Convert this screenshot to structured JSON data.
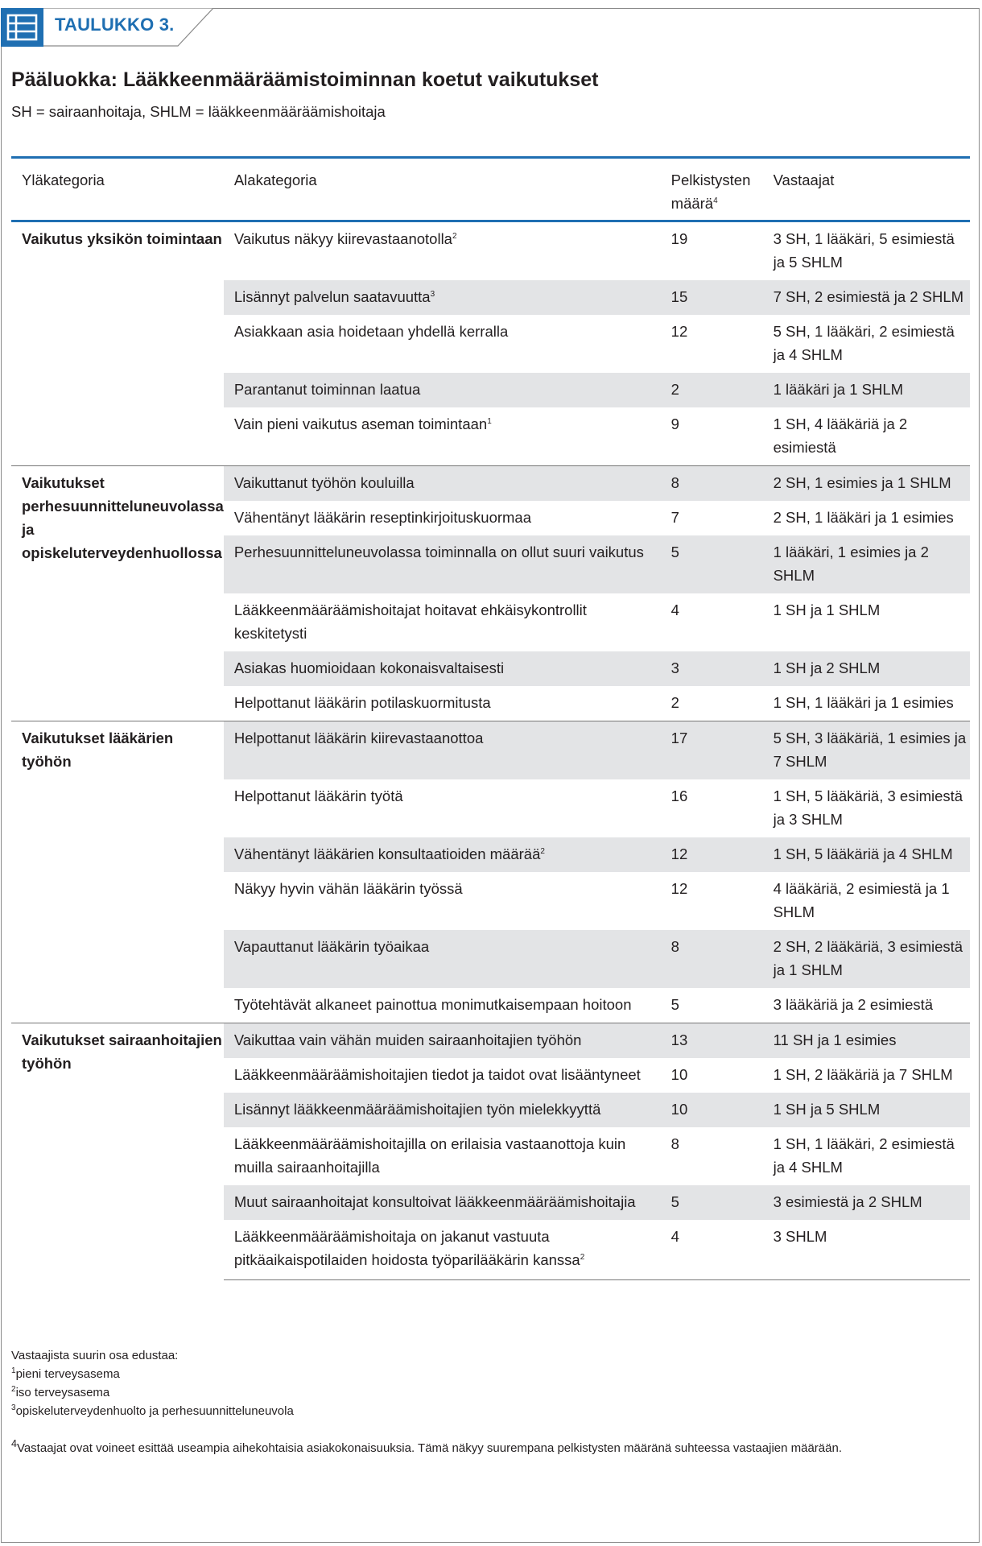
{
  "header": {
    "tag_label": "TAULUKKO 3.",
    "accent_color": "#1f6fb2",
    "icon": "table-icon"
  },
  "title": "Pääluokka: Lääkkeenmääräämistoiminnan koetut vaikutukset",
  "subtitle": "SH = sairaanhoitaja, SHLM = lääkkeenmääräämishoitaja",
  "table": {
    "columns": [
      "Yläkategoria",
      "Alakategoria",
      "Pelkistysten määrä",
      "Vastaajat"
    ],
    "groups": [
      {
        "category": "Vaikutus yksikön toimintaan",
        "rows": [
          {
            "sub": "Vaikutus näkyy kiirevastaanotolla",
            "sup": "2",
            "count": "19",
            "resp": "3 SH, 1 lääkäri, 5 esimiestä ja 5 SHLM"
          },
          {
            "sub": "Lisännyt palvelun saatavuutta",
            "sup": "3",
            "count": "15",
            "resp": "7 SH, 2 esimiestä ja 2 SHLM"
          },
          {
            "sub": "Asiakkaan asia hoidetaan yhdellä kerralla",
            "sup": "",
            "count": "12",
            "resp": "5 SH, 1 lääkäri, 2 esimiestä ja 4 SHLM"
          },
          {
            "sub": "Parantanut toiminnan laatua",
            "sup": "",
            "count": "2",
            "resp": "1 lääkäri ja 1 SHLM"
          },
          {
            "sub": "Vain pieni vaikutus aseman toimintaan",
            "sup": "1",
            "count": "9",
            "resp": "1 SH, 4 lääkäriä ja 2 esimiestä"
          }
        ]
      },
      {
        "category": "Vaikutukset perhesuunnitteluneuvolassa ja opiskeluterveydenhuollossa",
        "rows": [
          {
            "sub": "Vaikuttanut työhön kouluilla",
            "sup": "",
            "count": "8",
            "resp": "2 SH, 1 esimies ja 1 SHLM"
          },
          {
            "sub": "Vähentänyt lääkärin reseptinkirjoituskuormaa",
            "sup": "",
            "count": "7",
            "resp": "2 SH, 1 lääkäri ja 1 esimies"
          },
          {
            "sub": "Perhesuunnitteluneuvolassa toiminnalla on ollut suuri vaikutus",
            "sup": "",
            "count": "5",
            "resp": "1 lääkäri, 1 esimies ja 2 SHLM"
          },
          {
            "sub": "Lääkkeenmääräämishoitajat hoitavat ehkäisykontrollit keskitetysti",
            "sup": "",
            "count": "4",
            "resp": "1 SH ja 1 SHLM"
          },
          {
            "sub": "Asiakas huomioidaan kokonaisvaltaisesti",
            "sup": "",
            "count": "3",
            "resp": "1 SH ja 2 SHLM"
          },
          {
            "sub": "Helpottanut lääkärin potilaskuormitusta",
            "sup": "",
            "count": "2",
            "resp": "1 SH, 1 lääkäri ja 1 esimies"
          }
        ]
      },
      {
        "category": "Vaikutukset lääkärien työhön",
        "rows": [
          {
            "sub": "Helpottanut lääkärin kiirevastaanottoa",
            "sup": "",
            "count": "17",
            "resp": "5 SH, 3 lääkäriä, 1 esimies ja 7 SHLM"
          },
          {
            "sub": "Helpottanut lääkärin työtä",
            "sup": "",
            "count": "16",
            "resp": "1 SH, 5 lääkäriä, 3 esimiestä ja 3 SHLM"
          },
          {
            "sub": "Vähentänyt lääkärien konsultaatioiden määrää",
            "sup": "2",
            "count": "12",
            "resp": "1 SH, 5 lääkäriä ja 4 SHLM"
          },
          {
            "sub": "Näkyy hyvin vähän lääkärin työssä",
            "sup": "",
            "count": "12",
            "resp": "4 lääkäriä, 2 esimiestä ja 1 SHLM"
          },
          {
            "sub": "Vapauttanut lääkärin työaikaa",
            "sup": "",
            "count": "8",
            "resp": "2 SH, 2 lääkäriä, 3 esimiestä ja 1 SHLM"
          },
          {
            "sub": "Työtehtävät alkaneet painottua monimutkaisempaan hoitoon",
            "sup": "",
            "count": "5",
            "resp": "3 lääkäriä ja 2 esimiestä"
          }
        ]
      },
      {
        "category": "Vaikutukset sairaanhoitajien työhön",
        "rows": [
          {
            "sub": "Vaikuttaa vain vähän muiden sairaanhoitajien työhön",
            "sup": "",
            "count": "13",
            "resp": "11 SH ja 1 esimies"
          },
          {
            "sub": "Lääkkeenmääräämishoitajien tiedot ja taidot ovat lisääntyneet",
            "sup": "",
            "count": "10",
            "resp": "1 SH, 2 lääkäriä ja 7 SHLM"
          },
          {
            "sub": "Lisännyt lääkkeenmääräämishoitajien työn mielekkyyttä",
            "sup": "",
            "count": "10",
            "resp": "1 SH ja 5 SHLM"
          },
          {
            "sub": "Lääkkeenmääräämishoitajilla on erilaisia vastaanottoja kuin muilla sairaanhoitajilla",
            "sup": "",
            "count": "8",
            "resp": "1 SH, 1 lääkäri, 2 esimiestä ja 4 SHLM"
          },
          {
            "sub": "Muut sairaanhoitajat konsultoivat lääkkeenmääräämishoitajia",
            "sup": "",
            "count": "5",
            "resp": "3 esimiestä ja 2 SHLM"
          },
          {
            "sub": "Lääkkeenmääräämishoitaja on jakanut vastuuta pitkäaikaispotilaiden hoidosta työparilääkärin kanssa",
            "sup": "2",
            "count": "4",
            "resp": "3 SHLM"
          }
        ]
      }
    ]
  },
  "notes": {
    "intro": "Vastaajista suurin osa edustaa:",
    "items": [
      {
        "sup": "1",
        "text": "pieni terveysasema"
      },
      {
        "sup": "2",
        "text": "iso terveysasema"
      },
      {
        "sup": "3",
        "text": "opiskeluterveydenhuolto ja perhesuunnitteluneuvola"
      }
    ],
    "footnote4": {
      "sup": "4",
      "text": "Vastaajat ovat voineet esittää useampia aihekohtaisia asiakokonaisuuksia. Tämä näkyy suurempana pelkistysten määränä suhteessa vastaajien määrään."
    }
  }
}
